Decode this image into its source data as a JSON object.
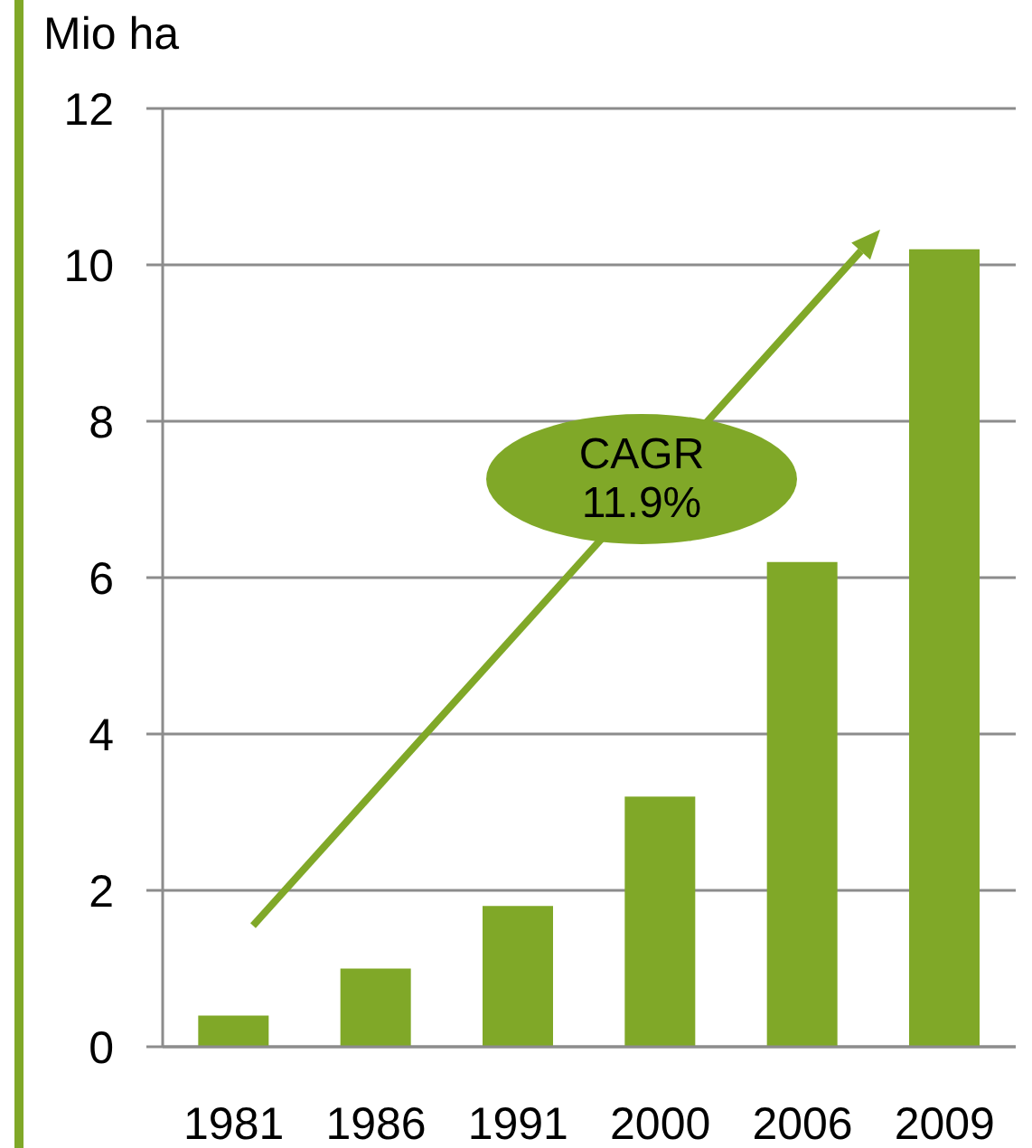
{
  "chart_data": {
    "type": "bar",
    "ylabel": "Mio ha",
    "categories": [
      "1981",
      "1986",
      "1991",
      "2000",
      "2006",
      "2009"
    ],
    "values": [
      0.4,
      1.0,
      1.8,
      3.2,
      6.2,
      10.2
    ],
    "color": "#80a828",
    "ylim": [
      0,
      12
    ],
    "yticks": [
      0,
      2,
      4,
      6,
      8,
      10,
      12
    ],
    "grid": "y",
    "annotations": [
      "CAGR 11.9%"
    ]
  }
}
